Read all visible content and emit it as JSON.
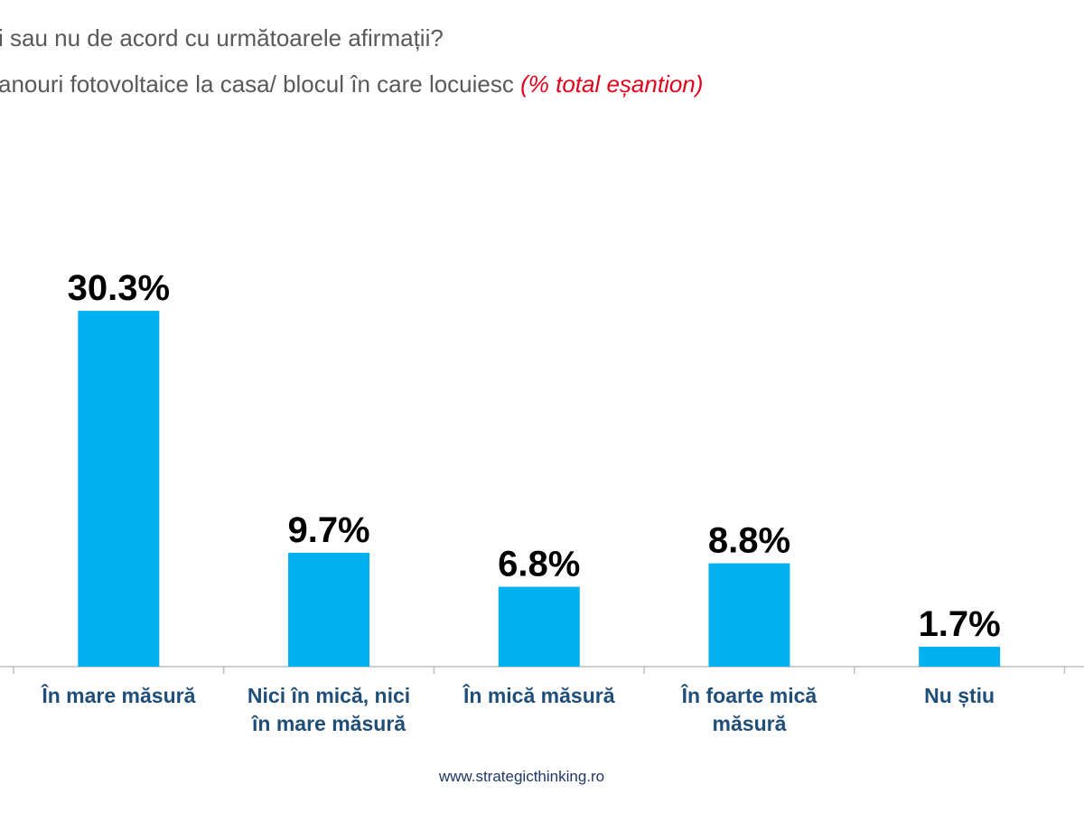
{
  "header": {
    "line1": "i sau nu de acord cu următoarele afirmații?",
    "line2": "anouri fotovoltaice la casa/ blocul în care locuiesc ",
    "line2_note": "(% total eșantion)"
  },
  "footer": "www.strategicthinking.ro",
  "chart_data": {
    "type": "bar",
    "categories": [
      [
        "În mare măsură"
      ],
      [
        "Nici în mică, nici",
        "în mare măsură"
      ],
      [
        "În mică măsură"
      ],
      [
        "În foarte mică",
        "măsură"
      ],
      [
        "Nu știu"
      ]
    ],
    "values": [
      30.3,
      9.7,
      6.8,
      8.8,
      1.7
    ],
    "labels": [
      "30.3%",
      "9.7%",
      "6.8%",
      "8.8%",
      "1.7%"
    ],
    "ylim": [
      0,
      32
    ],
    "bar_color": "#00b0f0",
    "label_color": "#1f4e79"
  }
}
